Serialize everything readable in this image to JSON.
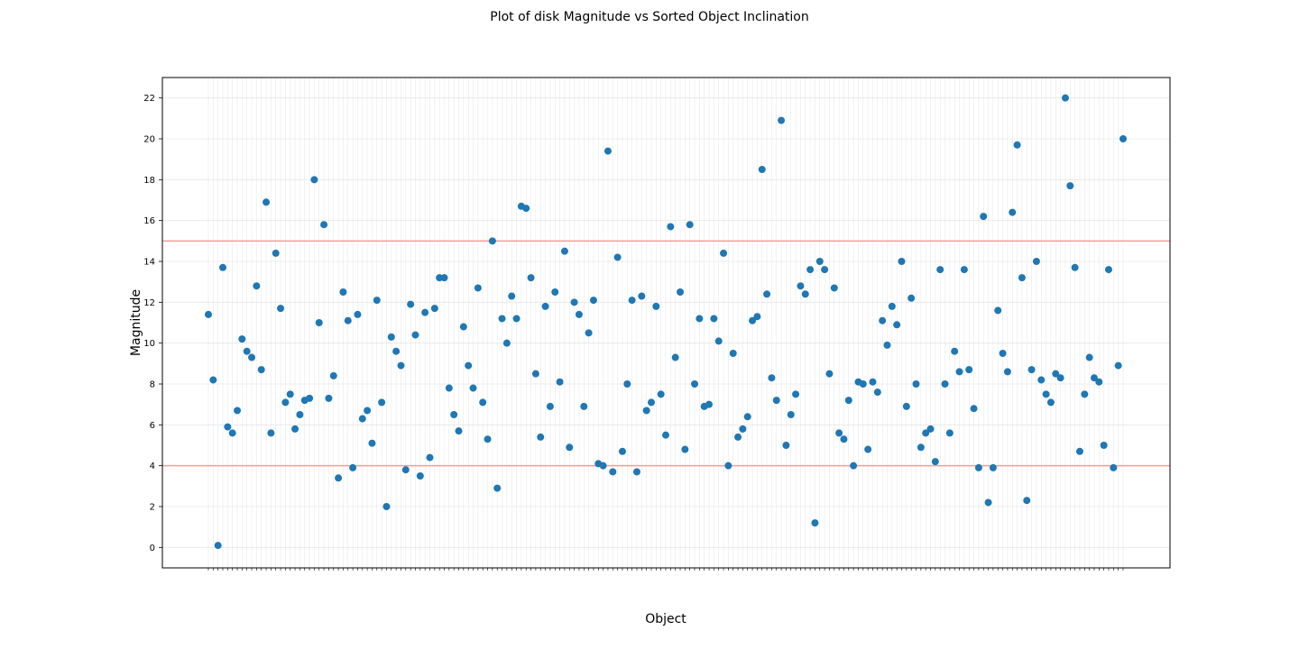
{
  "chart_data": {
    "type": "scatter",
    "title": "Plot of disk Magnitude vs Sorted Object Inclination",
    "xlabel": "Object",
    "ylabel": "Magnitude",
    "ylim": [
      -1,
      23
    ],
    "yticks": [
      0,
      2,
      4,
      6,
      8,
      10,
      12,
      14,
      16,
      18,
      20,
      22
    ],
    "grid": true,
    "legend": "none",
    "point_color": "#1f77b4",
    "reference_line_color": "#ff9999",
    "reference_lines": [
      4,
      15
    ],
    "x_tick_labels_note": "",
    "values": [
      11.4,
      8.2,
      0.1,
      13.7,
      5.9,
      5.6,
      6.7,
      10.2,
      9.6,
      9.3,
      12.8,
      8.7,
      16.9,
      5.6,
      14.4,
      11.7,
      7.1,
      7.5,
      5.8,
      6.5,
      7.2,
      7.3,
      18.0,
      11.0,
      15.8,
      7.3,
      8.4,
      3.4,
      12.5,
      11.1,
      3.9,
      11.4,
      6.3,
      6.7,
      5.1,
      12.1,
      7.1,
      2.0,
      10.3,
      9.6,
      8.9,
      3.8,
      11.9,
      10.4,
      3.5,
      11.5,
      4.4,
      11.7,
      13.2,
      13.2,
      7.8,
      6.5,
      5.7,
      10.8,
      8.9,
      7.8,
      12.7,
      7.1,
      5.3,
      15.0,
      2.9,
      11.2,
      10.0,
      12.3,
      11.2,
      16.7,
      16.6,
      13.2,
      8.5,
      5.4,
      11.8,
      6.9,
      12.5,
      8.1,
      14.5,
      4.9,
      12.0,
      11.4,
      6.9,
      10.5,
      12.1,
      4.1,
      4.0,
      19.4,
      3.7,
      14.2,
      4.7,
      8.0,
      12.1,
      3.7,
      12.3,
      6.7,
      7.1,
      11.8,
      7.5,
      5.5,
      15.7,
      9.3,
      12.5,
      4.8,
      15.8,
      8.0,
      11.2,
      6.9,
      7.0,
      11.2,
      10.1,
      14.4,
      4.0,
      9.5,
      5.4,
      5.8,
      6.4,
      11.1,
      11.3,
      18.5,
      12.4,
      8.3,
      7.2,
      20.9,
      5.0,
      6.5,
      7.5,
      12.8,
      12.4,
      13.6,
      1.2,
      14.0,
      13.6,
      8.5,
      12.7,
      5.6,
      5.3,
      7.2,
      4.0,
      8.1,
      8.0,
      4.8,
      8.1,
      7.6,
      11.1,
      9.9,
      11.8,
      10.9,
      14.0,
      6.9,
      12.2,
      8.0,
      4.9,
      5.6,
      5.8,
      4.2,
      13.6,
      8.0,
      5.6,
      9.6,
      8.6,
      13.6,
      8.7,
      6.8,
      3.9,
      16.2,
      2.2,
      3.9,
      11.6,
      9.5,
      8.6,
      16.4,
      19.7,
      13.2,
      2.3,
      8.7,
      14.0,
      8.2,
      7.5,
      7.1,
      8.5,
      8.3,
      22.0,
      17.7,
      13.7,
      4.7,
      7.5,
      9.3,
      8.3,
      8.1,
      5.0,
      13.6,
      3.9,
      8.9,
      20.0
    ]
  }
}
